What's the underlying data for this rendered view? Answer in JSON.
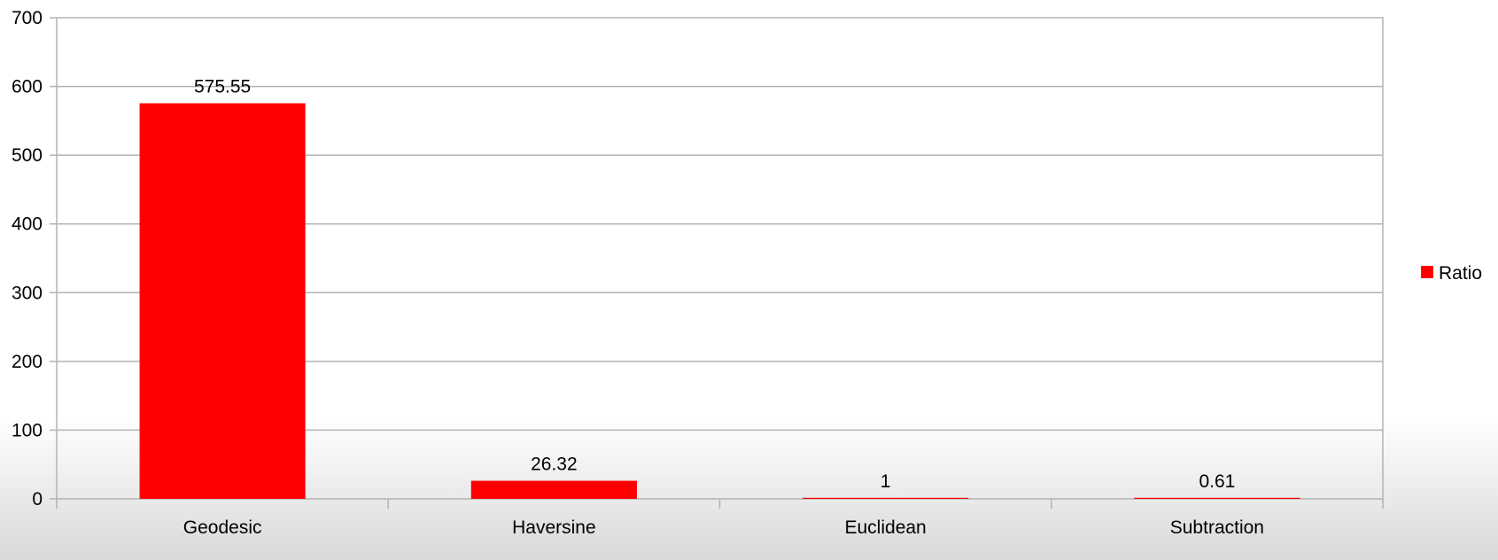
{
  "chart_data": {
    "type": "bar",
    "categories": [
      "Geodesic",
      "Haversine",
      "Euclidean",
      "Subtraction"
    ],
    "series": [
      {
        "name": "Ratio",
        "values": [
          575.55,
          26.32,
          1,
          0.61
        ],
        "data_labels": [
          "575.55",
          "26.32",
          "1",
          "0.61"
        ],
        "color": "#ff0000"
      }
    ],
    "ylim": [
      0,
      700
    ],
    "yticks": [
      0,
      100,
      200,
      300,
      400,
      500,
      600,
      700
    ],
    "grid": true,
    "legend_position": "right"
  }
}
